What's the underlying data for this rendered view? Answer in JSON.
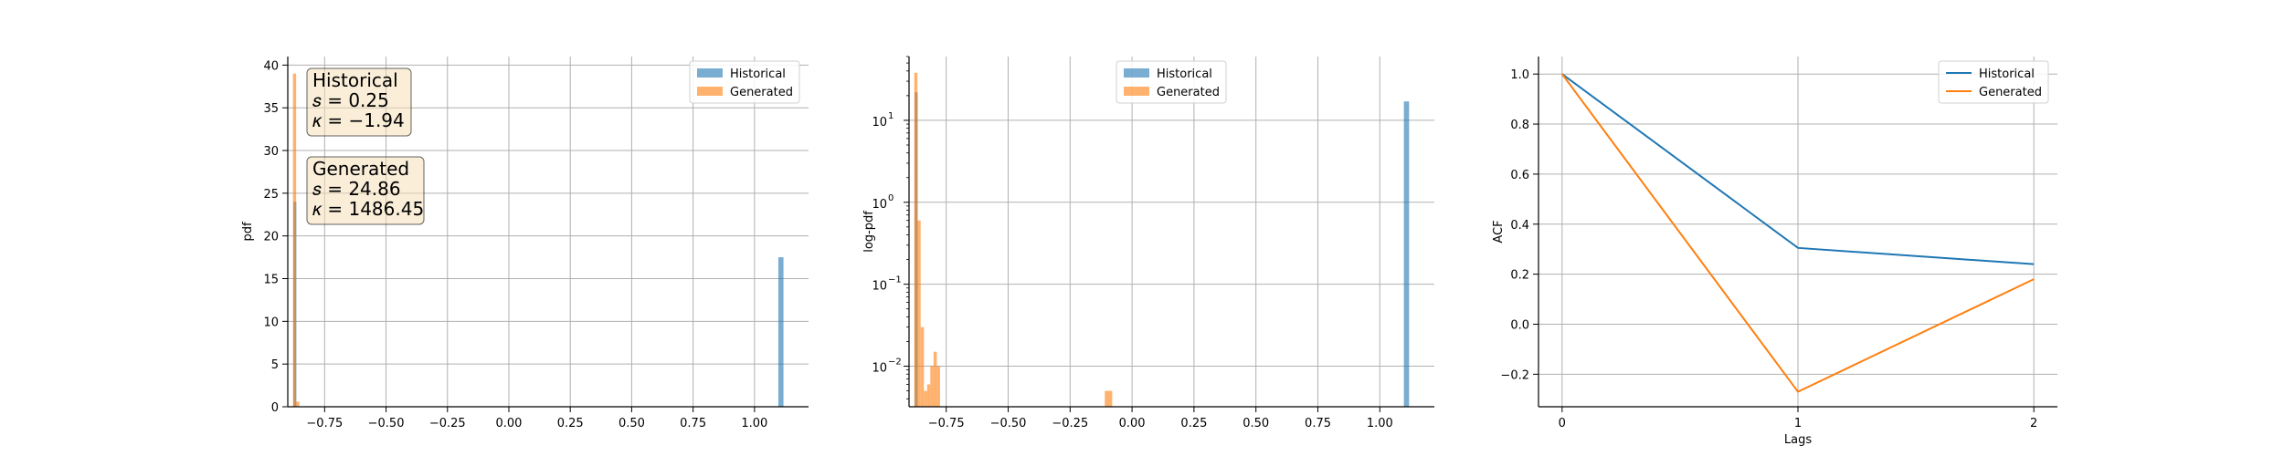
{
  "chart_data": [
    {
      "type": "bar",
      "ylabel": "pdf",
      "xlabel": "",
      "xlim": [
        -0.9,
        1.22
      ],
      "ylim": [
        0,
        41
      ],
      "xticks": [
        -0.75,
        -0.5,
        -0.25,
        0.0,
        0.25,
        0.5,
        0.75,
        1.0
      ],
      "xtick_labels": [
        "−0.75",
        "−0.50",
        "−0.25",
        "0.00",
        "0.25",
        "0.50",
        "0.75",
        "1.00"
      ],
      "yticks": [
        0,
        5,
        10,
        15,
        20,
        25,
        30,
        35,
        40
      ],
      "ytick_labels": [
        "0",
        "5",
        "10",
        "15",
        "20",
        "25",
        "30",
        "35",
        "40"
      ],
      "grid": true,
      "legend": "top-right",
      "series": [
        {
          "name": "Historical",
          "color": "#1f77b4",
          "alpha": 0.6,
          "bins": [
            {
              "x0": -0.877,
              "x1": -0.865,
              "y": 24.0
            },
            {
              "x0": 1.097,
              "x1": 1.118,
              "y": 17.5
            }
          ]
        },
        {
          "name": "Generated",
          "color": "#ff7f0e",
          "alpha": 0.6,
          "bins": [
            {
              "x0": -0.879,
              "x1": -0.866,
              "y": 39.0
            },
            {
              "x0": -0.866,
              "x1": -0.853,
              "y": 0.6
            }
          ]
        }
      ],
      "annotations": [
        {
          "title": "Historical",
          "skew_label": "𝑠 = 0.25",
          "kurt_label": "𝜅 = −1.94"
        },
        {
          "title": "Generated",
          "skew_label": "𝑠 = 24.86",
          "kurt_label": "𝜅 = 1486.45"
        }
      ]
    },
    {
      "type": "bar",
      "ylabel": "log-pdf",
      "xlabel": "",
      "yscale": "log",
      "xlim": [
        -0.9,
        1.22
      ],
      "ylim": [
        0.0032,
        60
      ],
      "xticks": [
        -0.75,
        -0.5,
        -0.25,
        0.0,
        0.25,
        0.5,
        0.75,
        1.0
      ],
      "xtick_labels": [
        "−0.75",
        "−0.50",
        "−0.25",
        "0.00",
        "0.25",
        "0.50",
        "0.75",
        "1.00"
      ],
      "yticks": [
        0.01,
        0.1,
        1,
        10
      ],
      "ytick_labels": [
        "10",
        "10",
        "10",
        "10"
      ],
      "ytick_exponents": [
        "−2",
        "−1",
        "0",
        "1"
      ],
      "grid": true,
      "legend": "top-center",
      "series": [
        {
          "name": "Historical",
          "color": "#1f77b4",
          "alpha": 0.6,
          "bins": [
            {
              "x0": -0.877,
              "x1": -0.865,
              "y": 22.0
            },
            {
              "x0": 1.097,
              "x1": 1.118,
              "y": 17.0
            }
          ]
        },
        {
          "name": "Generated",
          "color": "#ff7f0e",
          "alpha": 0.6,
          "bins": [
            {
              "x0": -0.879,
              "x1": -0.866,
              "y": 38.0
            },
            {
              "x0": -0.866,
              "x1": -0.853,
              "y": 0.6
            },
            {
              "x0": -0.853,
              "x1": -0.84,
              "y": 0.03
            },
            {
              "x0": -0.84,
              "x1": -0.827,
              "y": 0.005
            },
            {
              "x0": -0.827,
              "x1": -0.814,
              "y": 0.006
            },
            {
              "x0": -0.814,
              "x1": -0.801,
              "y": 0.01
            },
            {
              "x0": -0.801,
              "x1": -0.788,
              "y": 0.015
            },
            {
              "x0": -0.788,
              "x1": -0.775,
              "y": 0.01
            },
            {
              "x0": -0.11,
              "x1": -0.08,
              "y": 0.005
            }
          ]
        }
      ]
    },
    {
      "type": "line",
      "xlabel": "Lags",
      "ylabel": "ACF",
      "xlim": [
        -0.1,
        2.1
      ],
      "ylim": [
        -0.33,
        1.07
      ],
      "xticks": [
        0,
        1,
        2
      ],
      "xtick_labels": [
        "0",
        "1",
        "2"
      ],
      "yticks": [
        -0.2,
        0.0,
        0.2,
        0.4,
        0.6,
        0.8,
        1.0
      ],
      "ytick_labels": [
        "−0.2",
        "0.0",
        "0.2",
        "0.4",
        "0.6",
        "0.8",
        "1.0"
      ],
      "grid": true,
      "legend": "top-right",
      "x": [
        0,
        1,
        2
      ],
      "series": [
        {
          "name": "Historical",
          "color": "#1f77b4",
          "values": [
            1.0,
            0.305,
            0.24
          ]
        },
        {
          "name": "Generated",
          "color": "#ff7f0e",
          "values": [
            1.0,
            -0.27,
            0.18
          ]
        }
      ]
    }
  ]
}
